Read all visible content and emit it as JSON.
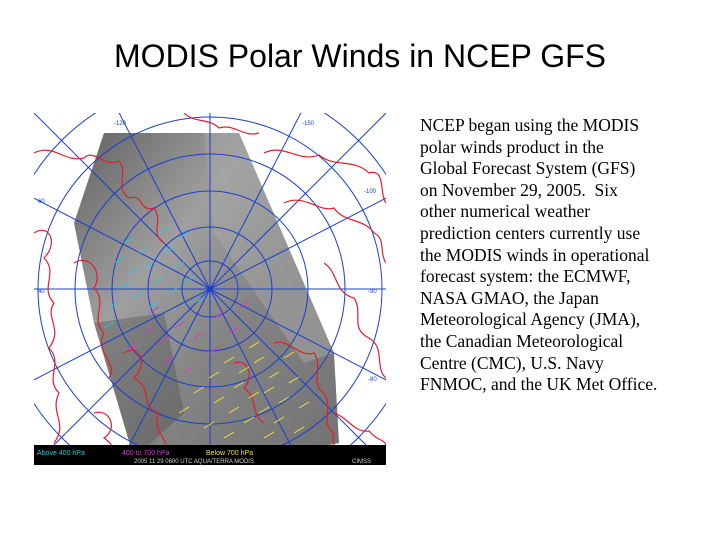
{
  "slide": {
    "title": "MODIS Polar Winds in NCEP GFS",
    "body_lines": [
      "NCEP began using the MODIS",
      "polar winds product in the",
      "Global Forecast System (GFS)",
      "on November 29, 2005.  Six",
      "other numerical weather",
      "prediction centers currently use",
      "the MODIS winds in operational",
      "forecast system: the ECMWF,",
      "NASA GMAO, the Japan",
      "Meteorological Agency (JMA),",
      "the Canadian Meteorological",
      "Centre (CMC), U.S. Navy",
      "FNMOC, and the UK Met Office."
    ]
  },
  "figure": {
    "legend": {
      "above_400": "Above 400 hPa",
      "mid_level": "400 to 700 hPa",
      "below_700": "Below 700 hPa"
    },
    "footer": "2005 11 29  0600  UTC  AQUA/TERRA  MODIS",
    "product_tag": "CIMSS",
    "colors": {
      "coastline": "#e0202a",
      "grid": "#1a3fd0",
      "wind_high": "#29c9e8",
      "wind_mid": "#e030d8",
      "wind_low": "#f0e030",
      "swath": "#8c8c8c"
    }
  }
}
